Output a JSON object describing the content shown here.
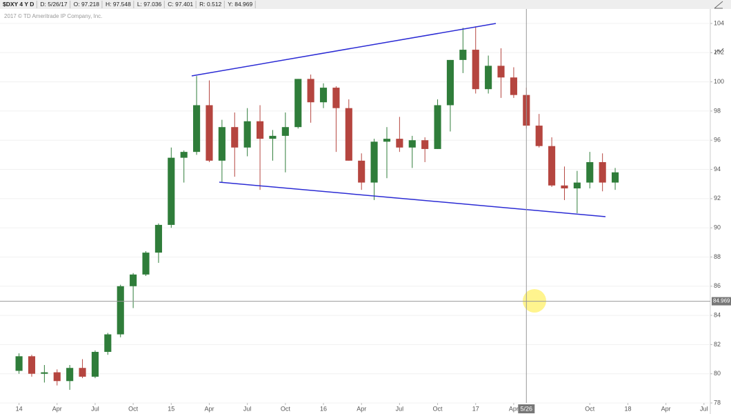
{
  "chart_data": {
    "type": "candlestick",
    "header": [
      "$DXY 4 Y D",
      "D: 5/26/17",
      "O: 97.218",
      "H: 97.548",
      "L: 97.036",
      "C: 97.401",
      "R: 0.512",
      "Y: 84.969"
    ],
    "subtitle": "2017 © TD Ameritrade IP Company, Inc.",
    "x": [
      "2014-01",
      "2014-02",
      "2014-03",
      "2014-04",
      "2014-05",
      "2014-06",
      "2014-07",
      "2014-08",
      "2014-09",
      "2014-10",
      "2014-11",
      "2014-12",
      "2015-01",
      "2015-02",
      "2015-03",
      "2015-04",
      "2015-05",
      "2015-06",
      "2015-07",
      "2015-08",
      "2015-09",
      "2015-10",
      "2015-11",
      "2015-12",
      "2016-01",
      "2016-02",
      "2016-03",
      "2016-04",
      "2016-05",
      "2016-06",
      "2016-07",
      "2016-08",
      "2016-09",
      "2016-10",
      "2016-11",
      "2016-12",
      "2017-01",
      "2017-02",
      "2017-03",
      "2017-04",
      "2017-05",
      "2017-06",
      "2017-07",
      "2017-08",
      "2017-09",
      "2017-10",
      "2017-11",
      "2017-12"
    ],
    "open": [
      80.2,
      81.2,
      80.0,
      80.1,
      79.5,
      80.4,
      79.8,
      81.5,
      82.7,
      86.0,
      86.8,
      88.3,
      90.2,
      94.8,
      95.2,
      98.4,
      94.6,
      96.9,
      95.5,
      97.3,
      96.1,
      96.3,
      96.9,
      100.2,
      98.6,
      99.6,
      98.2,
      94.6,
      93.1,
      95.9,
      96.1,
      95.5,
      96.0,
      95.4,
      98.4,
      101.5,
      102.2,
      99.5,
      101.1,
      100.3,
      99.1,
      97.0,
      95.6,
      92.9,
      92.7,
      93.1,
      94.5,
      93.1
    ],
    "high": [
      81.4,
      81.3,
      80.6,
      80.3,
      80.6,
      81.0,
      81.6,
      82.8,
      86.1,
      86.9,
      88.4,
      90.3,
      95.5,
      95.3,
      100.4,
      100.1,
      97.4,
      97.9,
      98.2,
      98.4,
      96.7,
      97.9,
      100.2,
      100.5,
      99.9,
      99.7,
      98.8,
      95.1,
      96.1,
      96.9,
      97.6,
      96.3,
      96.2,
      98.8,
      101.5,
      103.7,
      103.8,
      101.8,
      102.3,
      101.0,
      99.6,
      97.8,
      96.2,
      94.2,
      93.9,
      95.2,
      95.1,
      94.1
    ],
    "low": [
      80.0,
      79.8,
      79.4,
      79.2,
      78.9,
      79.7,
      79.7,
      81.3,
      82.5,
      84.5,
      86.7,
      87.6,
      90.0,
      93.1,
      95.0,
      94.5,
      93.1,
      93.5,
      94.9,
      92.6,
      94.6,
      93.8,
      96.8,
      97.2,
      98.2,
      95.2,
      94.6,
      92.6,
      91.9,
      93.4,
      95.2,
      94.1,
      94.5,
      95.4,
      96.6,
      100.6,
      99.2,
      99.2,
      98.9,
      98.9,
      96.8,
      95.5,
      92.8,
      91.9,
      91.0,
      92.7,
      92.5,
      92.6
    ],
    "close": [
      81.2,
      80.0,
      80.1,
      79.5,
      80.4,
      79.8,
      81.5,
      82.7,
      86.0,
      86.8,
      88.3,
      90.2,
      94.8,
      95.2,
      98.4,
      94.6,
      96.9,
      95.5,
      97.3,
      96.1,
      96.3,
      96.9,
      100.2,
      98.6,
      99.6,
      98.2,
      94.6,
      93.1,
      95.9,
      96.1,
      95.5,
      96.0,
      95.4,
      98.4,
      101.5,
      102.2,
      99.5,
      101.1,
      100.3,
      99.1,
      97.0,
      95.6,
      92.9,
      92.7,
      93.1,
      94.5,
      93.1,
      93.8
    ],
    "up_color": "#2f7d3a",
    "down_color": "#b5453f",
    "xlim": [
      "2013-12",
      "2018-08"
    ],
    "xticks": [
      {
        "value": "2014-01",
        "label": "14"
      },
      {
        "value": "2014-04",
        "label": "Apr"
      },
      {
        "value": "2014-07",
        "label": "Jul"
      },
      {
        "value": "2014-10",
        "label": "Oct"
      },
      {
        "value": "2015-01",
        "label": "15"
      },
      {
        "value": "2015-04",
        "label": "Apr"
      },
      {
        "value": "2015-07",
        "label": "Jul"
      },
      {
        "value": "2015-10",
        "label": "Oct"
      },
      {
        "value": "2016-01",
        "label": "16"
      },
      {
        "value": "2016-04",
        "label": "Apr"
      },
      {
        "value": "2016-07",
        "label": "Jul"
      },
      {
        "value": "2016-10",
        "label": "Oct"
      },
      {
        "value": "2017-01",
        "label": "17"
      },
      {
        "value": "2017-04",
        "label": "Apr"
      },
      {
        "value": "2017-10",
        "label": "Oct"
      },
      {
        "value": "2018-01",
        "label": "18"
      },
      {
        "value": "2018-04",
        "label": "Apr"
      },
      {
        "value": "2018-07",
        "label": "Jul"
      }
    ],
    "ylim": [
      78,
      104
    ],
    "yticks": [
      78,
      80,
      82,
      84,
      86,
      88,
      90,
      92,
      94,
      96,
      98,
      100,
      102,
      104
    ],
    "crosshair": {
      "x": {
        "value": "2017-05",
        "label": "5/26"
      },
      "y": 84.969
    }
  }
}
